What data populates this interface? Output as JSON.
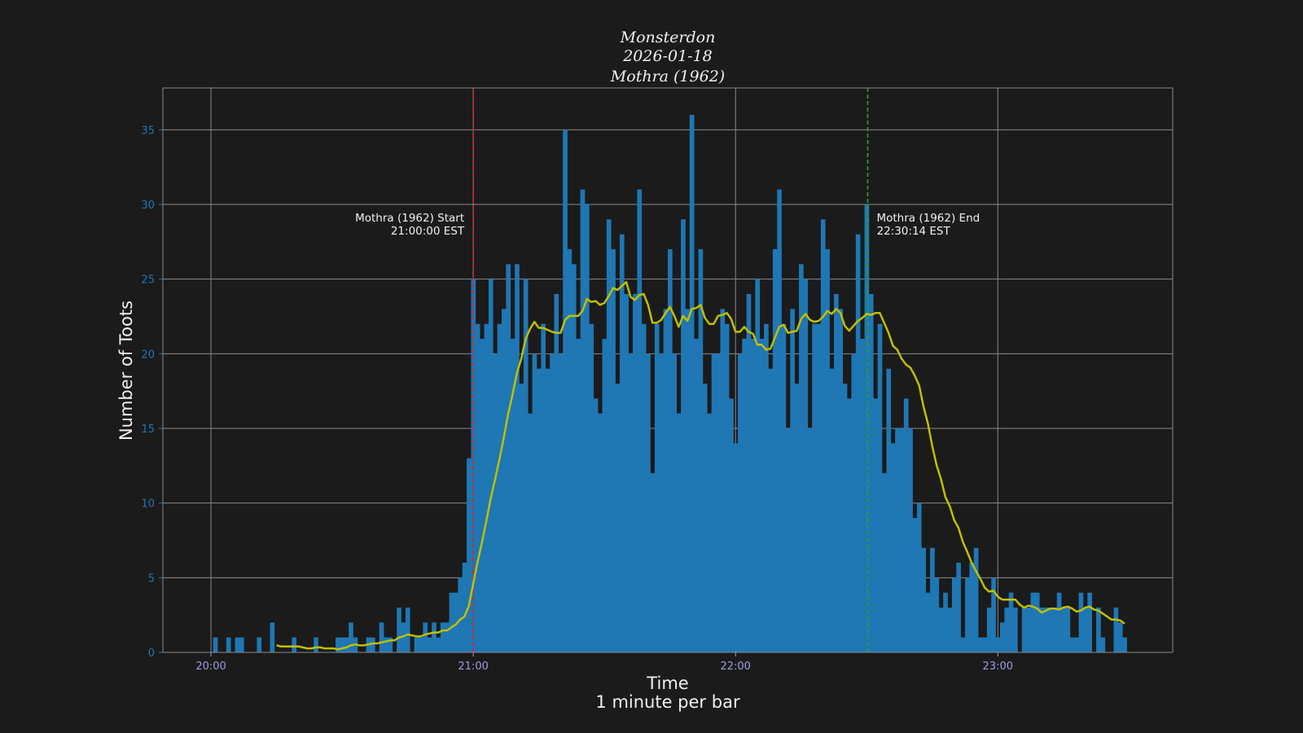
{
  "chart_data": {
    "type": "bar",
    "title_lines": [
      "Monsterdon",
      "2026-01-18",
      "Mothra (1962)"
    ],
    "xlabel_lines": [
      "Time",
      "1 minute per bar"
    ],
    "ylabel": "Number of Toots",
    "x_first_bar": "20:01",
    "bar_interval": "1 minute",
    "xlim": [
      "19:49",
      "23:40"
    ],
    "ylim": [
      0,
      37.8
    ],
    "xticks": [
      "20:00",
      "21:00",
      "22:00",
      "23:00"
    ],
    "yticks": [
      0,
      5,
      10,
      15,
      20,
      25,
      30,
      35
    ],
    "grid": true,
    "values": [
      1,
      0,
      0,
      1,
      0,
      1,
      1,
      0,
      0,
      0,
      1,
      0,
      0,
      2,
      0,
      0,
      0,
      0,
      1,
      0,
      0,
      0,
      0,
      1,
      0,
      0,
      0,
      0,
      1,
      1,
      1,
      2,
      1,
      0,
      0,
      1,
      1,
      0,
      2,
      1,
      1,
      0,
      3,
      2,
      3,
      0,
      1,
      1,
      2,
      1,
      2,
      1,
      2,
      2,
      4,
      4,
      5,
      6,
      13,
      25,
      22,
      21,
      22,
      25,
      20,
      22,
      23,
      26,
      21,
      26,
      18,
      25,
      16,
      20,
      19,
      22,
      19,
      20,
      24,
      20,
      35,
      27,
      26,
      21,
      31,
      30,
      22,
      17,
      16,
      21,
      29,
      27,
      18,
      28,
      24,
      20,
      24,
      31,
      22,
      20,
      12,
      22,
      20,
      23,
      27,
      20,
      16,
      29,
      23,
      36,
      21,
      27,
      18,
      16,
      20,
      20,
      23,
      22,
      17,
      14,
      20,
      21,
      24,
      21,
      25,
      21,
      22,
      19,
      27,
      31,
      22,
      15,
      23,
      18,
      26,
      25,
      15,
      22,
      22,
      29,
      27,
      19,
      24,
      23,
      18,
      17,
      20,
      28,
      21,
      30,
      24,
      17,
      22,
      12,
      19,
      14,
      15,
      15,
      17,
      15,
      9,
      10,
      7,
      4,
      7,
      5,
      3,
      4,
      3,
      5,
      6,
      1,
      5,
      6,
      7,
      1,
      1,
      3,
      5,
      1,
      2,
      3,
      4,
      3,
      0,
      3,
      3,
      4,
      4,
      3,
      3,
      3,
      3,
      4,
      3,
      3,
      1,
      1,
      4,
      3,
      4,
      0,
      3,
      1,
      0,
      0,
      3,
      2,
      1
    ],
    "series_overlay": {
      "type": "line",
      "kind": "rolling mean",
      "color": "#bfbf00"
    },
    "annotations": [
      {
        "time": "21:00:00",
        "line_color": "#d62728",
        "text_lines": [
          "Mothra (1962) Start",
          "21:00:00 EST"
        ],
        "align": "left-of-line"
      },
      {
        "time": "22:30:14",
        "line_color": "#2ca02c",
        "text_lines": [
          "Mothra (1962) End",
          "22:30:14 EST"
        ],
        "align": "right-of-line"
      }
    ],
    "colors": {
      "background": "#1b1b1b",
      "bars": "#1f77b4",
      "grid": "#8a8a8a",
      "ytick_labels": "#1f77b4",
      "xtick_labels": "#9c9ce0"
    }
  }
}
